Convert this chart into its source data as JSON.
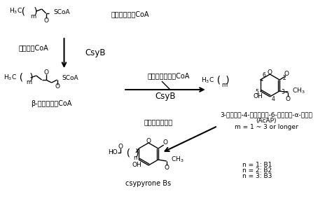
{
  "bg_color": "#ffffff",
  "text_color": "#000000",
  "fig_width": 4.74,
  "fig_height": 2.87,
  "dpi": 100,
  "labels": {
    "fatty_acyl_coa": "脂肪酸アシルCoA",
    "malonyl_coa": "マロニルCoA",
    "csyb1": "CsyB",
    "beta_keto": "β-ケトアシルCoA",
    "acetoacetyl_coa": "アセトアセチルCoA",
    "csyb2": "CsyB",
    "acap_label": "3-アセチル-4-ヒドロキシ-6-アルキル-α-ピロン",
    "acap_paren": "(AcAP)",
    "m_range": "m = 1 ~ 3 or longer",
    "oxidation": "宿主による酸化",
    "csypyrone": "csypyrone Bs",
    "n1": "n = 1: B1",
    "n2": "n = 2: B2",
    "n3": "n = 3: B3"
  }
}
